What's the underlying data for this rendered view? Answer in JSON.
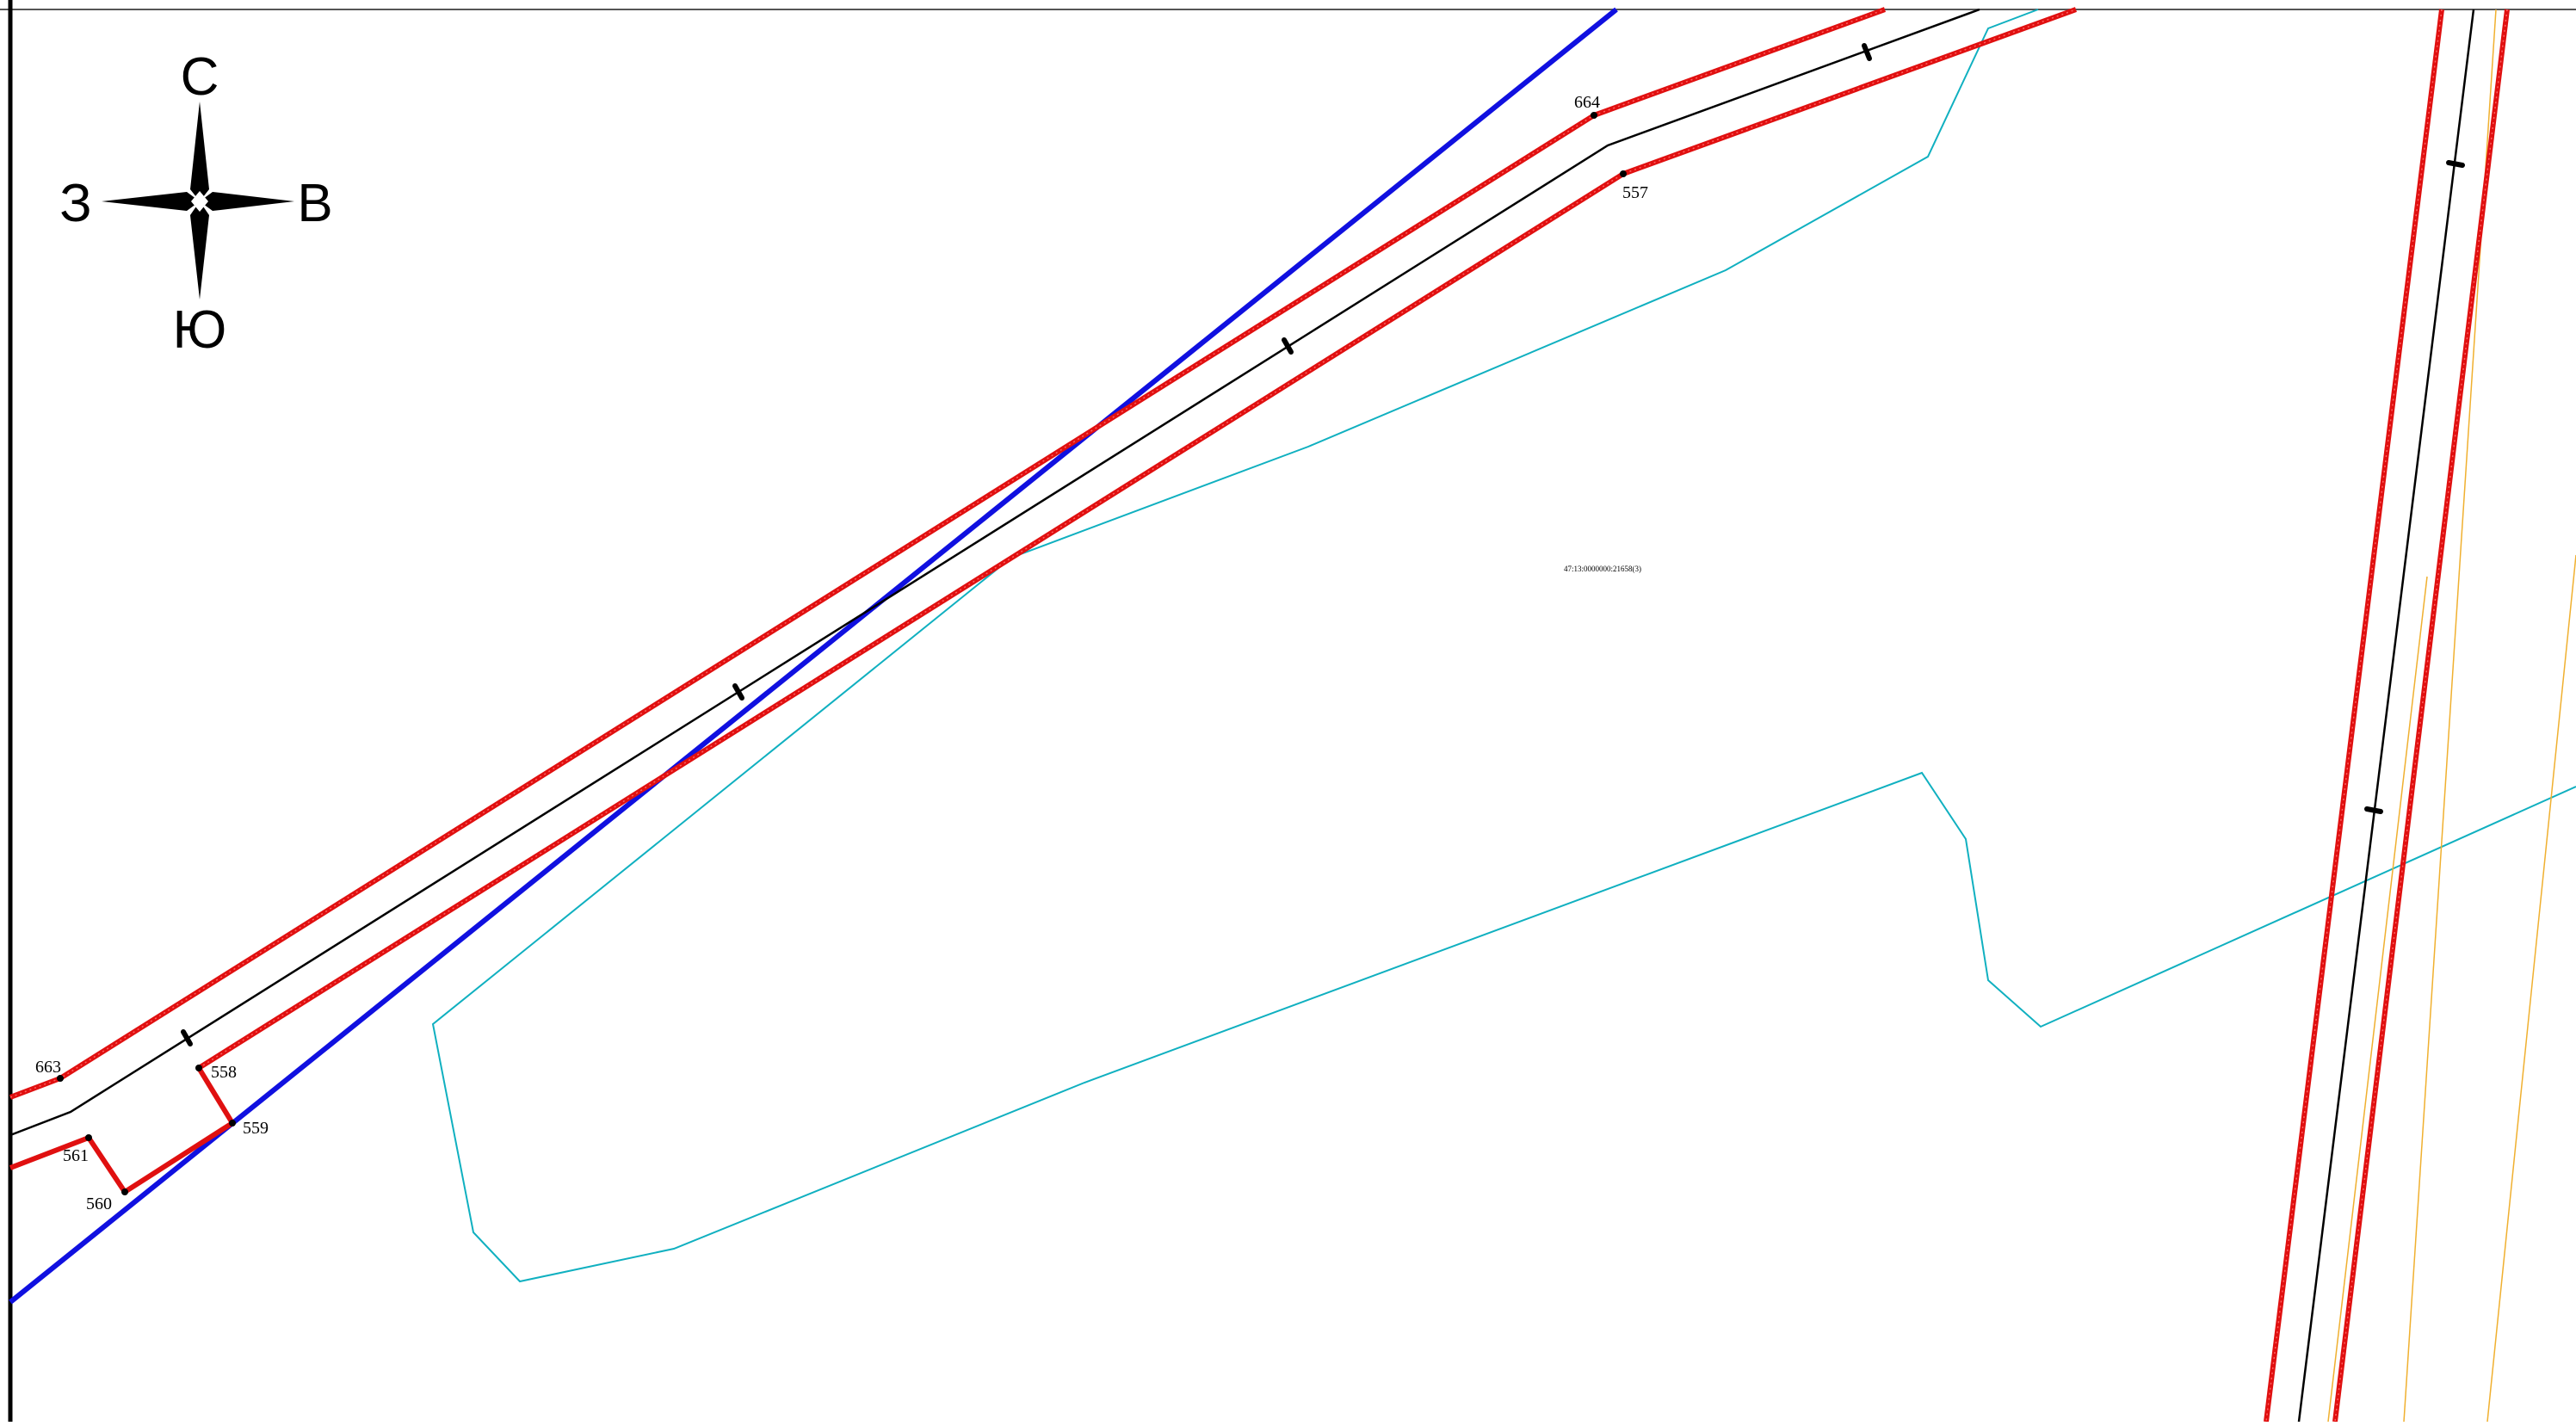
{
  "map": {
    "compass": {
      "north": "С",
      "south": "Ю",
      "west": "З",
      "east": "В"
    },
    "parcel_label": "47:13:0000000:21658(3)",
    "points": [
      {
        "id": "p663",
        "label": "663"
      },
      {
        "id": "p664",
        "label": "664"
      },
      {
        "id": "p557",
        "label": "557"
      },
      {
        "id": "p558",
        "label": "558"
      },
      {
        "id": "p559",
        "label": "559"
      },
      {
        "id": "p560",
        "label": "560"
      },
      {
        "id": "p561",
        "label": "561"
      }
    ],
    "colors": {
      "boundary_red": "#e01010",
      "road_blue": "#1010e0",
      "parcel_cyan": "#10b0c0",
      "axis_black": "#000000",
      "yellow_line": "#f0b030",
      "frame": "#000000"
    }
  }
}
